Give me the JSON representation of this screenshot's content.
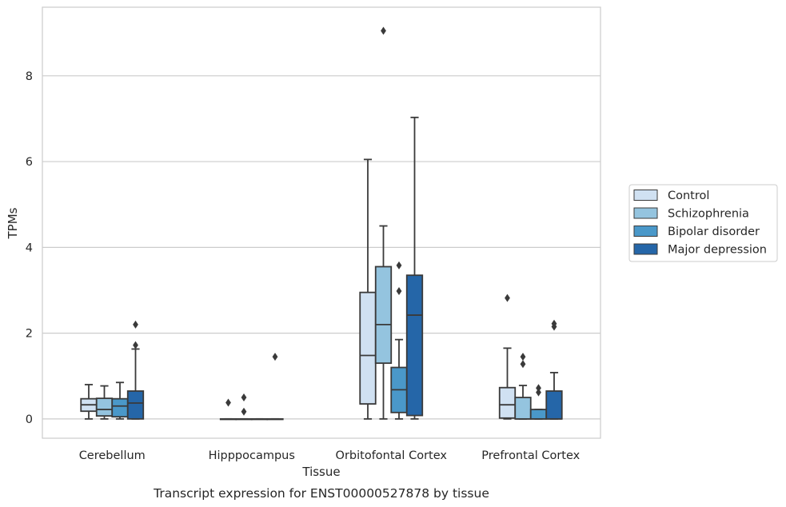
{
  "chart_data": {
    "type": "box",
    "title": "Transcript expression for ENST00000527878 by tissue",
    "xlabel": "Tissue",
    "ylabel": "TPMs",
    "ylim": [
      -0.45,
      9.6
    ],
    "yticks": [
      0,
      2,
      4,
      6,
      8
    ],
    "grid": true,
    "legend_position": "right",
    "categories": [
      "Cerebellum",
      "Hipppocampus",
      "Orbitofontal Cortex",
      "Prefrontal Cortex"
    ],
    "series": [
      {
        "name": "Control",
        "color": "#d0e1f2",
        "boxes": [
          {
            "whislo": 0.0,
            "q1": 0.18,
            "med": 0.33,
            "q3": 0.47,
            "whishi": 0.8,
            "fliers": []
          },
          {
            "whislo": 0.0,
            "q1": 0.0,
            "med": 0.0,
            "q3": 0.0,
            "whishi": 0.0,
            "fliers": [
              0.38
            ]
          },
          {
            "whislo": 0.0,
            "q1": 0.35,
            "med": 1.48,
            "q3": 2.95,
            "whishi": 6.05,
            "fliers": []
          },
          {
            "whislo": 0.0,
            "q1": 0.02,
            "med": 0.33,
            "q3": 0.73,
            "whishi": 1.65,
            "fliers": [
              2.82
            ]
          }
        ]
      },
      {
        "name": "Schizophrenia",
        "color": "#94c4df",
        "boxes": [
          {
            "whislo": 0.0,
            "q1": 0.07,
            "med": 0.22,
            "q3": 0.48,
            "whishi": 0.77,
            "fliers": []
          },
          {
            "whislo": 0.0,
            "q1": 0.0,
            "med": 0.0,
            "q3": 0.0,
            "whishi": 0.0,
            "fliers": [
              0.5,
              0.17
            ]
          },
          {
            "whislo": 0.0,
            "q1": 1.3,
            "med": 2.2,
            "q3": 3.55,
            "whishi": 4.5,
            "fliers": [
              9.05
            ]
          },
          {
            "whislo": 0.0,
            "q1": 0.0,
            "med": 0.0,
            "q3": 0.5,
            "whishi": 0.78,
            "fliers": [
              1.45,
              1.28
            ]
          }
        ]
      },
      {
        "name": "Bipolar disorder",
        "color": "#4a98c9",
        "boxes": [
          {
            "whislo": 0.0,
            "q1": 0.05,
            "med": 0.3,
            "q3": 0.47,
            "whishi": 0.85,
            "fliers": []
          },
          {
            "whislo": 0.0,
            "q1": 0.0,
            "med": 0.0,
            "q3": 0.0,
            "whishi": 0.0,
            "fliers": []
          },
          {
            "whislo": 0.0,
            "q1": 0.15,
            "med": 0.68,
            "q3": 1.2,
            "whishi": 1.85,
            "fliers": [
              3.58,
              2.98
            ]
          },
          {
            "whislo": 0.0,
            "q1": 0.0,
            "med": 0.0,
            "q3": 0.22,
            "whishi": 0.22,
            "fliers": [
              0.72,
              0.62
            ]
          }
        ]
      },
      {
        "name": "Major depression",
        "color": "#2566a8",
        "boxes": [
          {
            "whislo": 0.0,
            "q1": 0.0,
            "med": 0.37,
            "q3": 0.65,
            "whishi": 1.63,
            "fliers": [
              2.2,
              1.72
            ]
          },
          {
            "whislo": 0.0,
            "q1": 0.0,
            "med": 0.0,
            "q3": 0.0,
            "whishi": 0.0,
            "fliers": [
              1.45
            ]
          },
          {
            "whislo": 0.0,
            "q1": 0.08,
            "med": 2.42,
            "q3": 3.35,
            "whishi": 7.03,
            "fliers": []
          },
          {
            "whislo": 0.0,
            "q1": 0.0,
            "med": 0.0,
            "q3": 0.65,
            "whishi": 1.08,
            "fliers": [
              2.22,
              2.15
            ]
          }
        ]
      }
    ]
  }
}
